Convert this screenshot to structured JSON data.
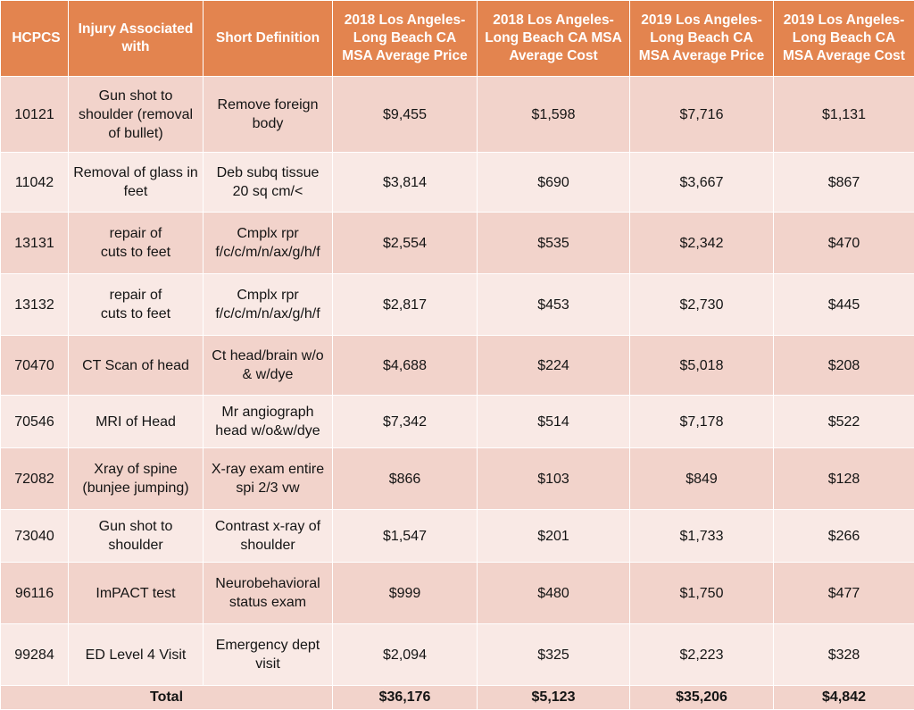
{
  "table": {
    "columns": [
      "HCPCS",
      "Injury Associated with",
      "Short Definition",
      "2018 Los Angeles-Long Beach CA MSA Average Price",
      "2018 Los Angeles-Long Beach CA MSA Average Cost",
      "2019 Los Angeles-Long Beach CA MSA Average Price",
      "2019 Los Angeles-Long Beach CA MSA Average Cost"
    ],
    "rows": [
      {
        "code": "10121",
        "injury": "Gun shot to shoulder (removal of bullet)",
        "definition": "Remove foreign body",
        "price_2018": "$9,455",
        "cost_2018": "$1,598",
        "price_2019": "$7,716",
        "cost_2019": "$1,131"
      },
      {
        "code": "11042",
        "injury": "Removal of glass in feet",
        "definition": "Deb subq tissue 20 sq cm/<",
        "price_2018": "$3,814",
        "cost_2018": "$690",
        "price_2019": "$3,667",
        "cost_2019": "$867"
      },
      {
        "code": "13131",
        "injury": "repair of\ncuts to feet",
        "definition": "Cmplx rpr f/c/c/m/n/ax/g/h/f",
        "price_2018": "$2,554",
        "cost_2018": "$535",
        "price_2019": "$2,342",
        "cost_2019": "$470"
      },
      {
        "code": "13132",
        "injury": "repair of\ncuts to feet",
        "definition": "Cmplx rpr f/c/c/m/n/ax/g/h/f",
        "price_2018": "$2,817",
        "cost_2018": "$453",
        "price_2019": "$2,730",
        "cost_2019": "$445"
      },
      {
        "code": "70470",
        "injury": "CT Scan of head",
        "definition": "Ct head/brain w/o & w/dye",
        "price_2018": "$4,688",
        "cost_2018": "$224",
        "price_2019": "$5,018",
        "cost_2019": "$208"
      },
      {
        "code": "70546",
        "injury": "MRI of Head",
        "definition": "Mr angiograph head w/o&w/dye",
        "price_2018": "$7,342",
        "cost_2018": "$514",
        "price_2019": "$7,178",
        "cost_2019": "$522"
      },
      {
        "code": "72082",
        "injury": "Xray of spine (bunjee jumping)",
        "definition": "X-ray exam entire spi 2/3 vw",
        "price_2018": "$866",
        "cost_2018": "$103",
        "price_2019": "$849",
        "cost_2019": "$128"
      },
      {
        "code": "73040",
        "injury": "Gun shot to shoulder",
        "definition": "Contrast x-ray of shoulder",
        "price_2018": "$1,547",
        "cost_2018": "$201",
        "price_2019": "$1,733",
        "cost_2019": "$266"
      },
      {
        "code": "96116",
        "injury": "ImPACT test",
        "definition": "Neurobehavioral status exam",
        "price_2018": "$999",
        "cost_2018": "$480",
        "price_2019": "$1,750",
        "cost_2019": "$477"
      },
      {
        "code": "99284",
        "injury": "ED Level 4 Visit",
        "definition": "Emergency dept visit",
        "price_2018": "$2,094",
        "cost_2018": "$325",
        "price_2019": "$2,223",
        "cost_2019": "$328"
      }
    ],
    "total": {
      "label": "Total",
      "price_2018": "$36,176",
      "cost_2018": "$5,123",
      "price_2019": "$35,206",
      "cost_2019": "$4,842"
    }
  },
  "colors": {
    "header_bg": "#e3844f",
    "row_dark": "#f2d3cb",
    "row_light": "#f9e9e5"
  }
}
